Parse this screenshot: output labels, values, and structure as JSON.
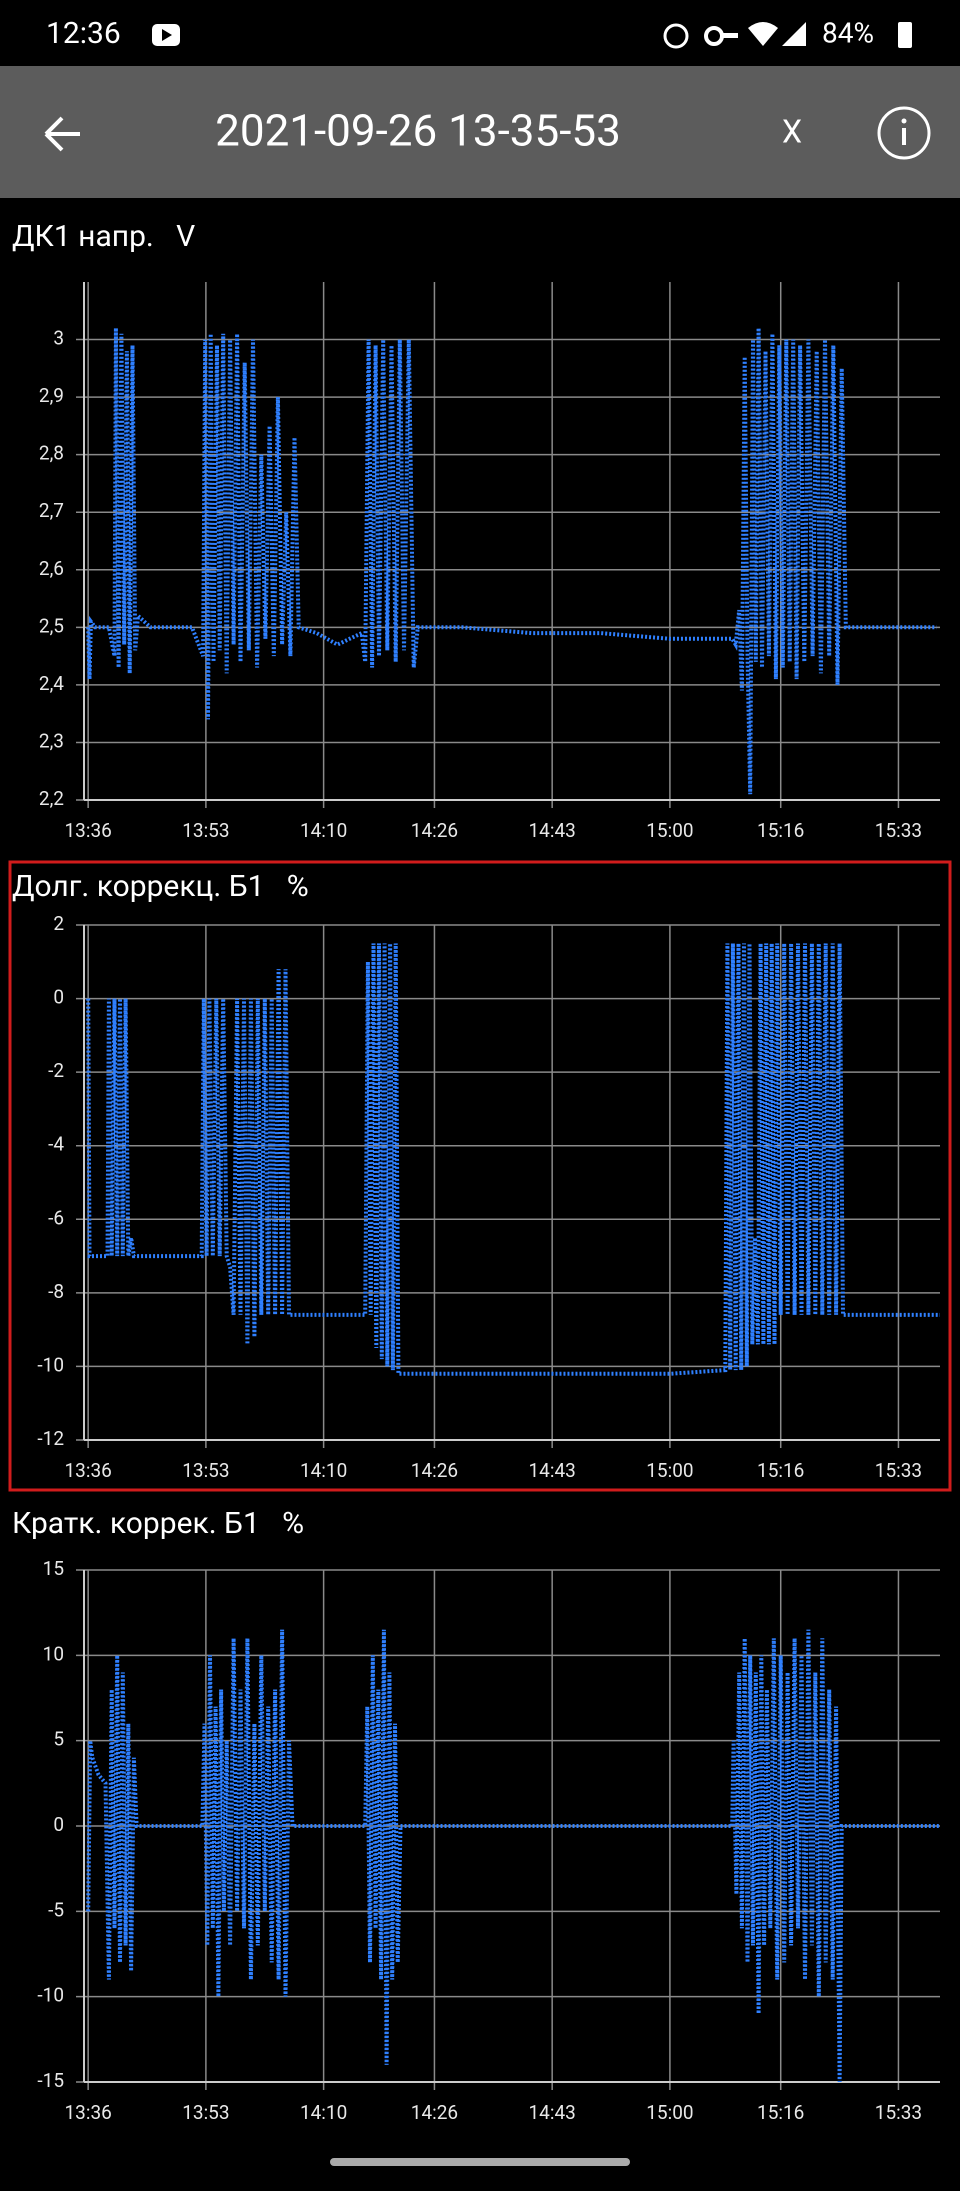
{
  "status_bar": {
    "time": "12:36",
    "battery": "84%"
  },
  "toolbar": {
    "title": "2021-09-26 13-35-53",
    "close": "X"
  },
  "chart_data": [
    {
      "type": "line",
      "title": "ДК1 напр.   V",
      "color": "#2f80ff",
      "grid": true,
      "xlim": [
        815.4,
        939
      ],
      "ylim": [
        2.2,
        3.1
      ],
      "xticks": [
        {
          "value": 816,
          "label": "13:36"
        },
        {
          "value": 833,
          "label": "13:53"
        },
        {
          "value": 850,
          "label": "14:10"
        },
        {
          "value": 866,
          "label": "14:26"
        },
        {
          "value": 883,
          "label": "14:43"
        },
        {
          "value": 900,
          "label": "15:00"
        },
        {
          "value": 916,
          "label": "15:16"
        },
        {
          "value": 933,
          "label": "15:33"
        }
      ],
      "yticks": [
        {
          "value": 2.2,
          "label": "2,2"
        },
        {
          "value": 2.3,
          "label": "2,3"
        },
        {
          "value": 2.4,
          "label": "2,4"
        },
        {
          "value": 2.5,
          "label": "2,5"
        },
        {
          "value": 2.6,
          "label": "2,6"
        },
        {
          "value": 2.7,
          "label": "2,7"
        },
        {
          "value": 2.8,
          "label": "2,8"
        },
        {
          "value": 2.9,
          "label": "2,9"
        },
        3
      ],
      "x": [
        816.0,
        816.2,
        816.4,
        817,
        819,
        819.8,
        820.0,
        820.4,
        820.8,
        821.2,
        821.6,
        822.0,
        822.4,
        822.8,
        823.2,
        825,
        828,
        831,
        832.6,
        832.9,
        833.3,
        833.7,
        834.1,
        834.6,
        835.0,
        835.5,
        836,
        836.5,
        837,
        837.5,
        838,
        838.6,
        839.2,
        839.8,
        840.4,
        841,
        841.6,
        842.2,
        842.8,
        843.4,
        844,
        844.6,
        845.2,
        845.8,
        846.4,
        849,
        852,
        855.5,
        856.0,
        856.5,
        857.0,
        857.5,
        858.0,
        858.6,
        859.2,
        859.8,
        860.4,
        861,
        861.6,
        862.3,
        863,
        863.6,
        870,
        880,
        890,
        900,
        905,
        909,
        909.5,
        910,
        910.4,
        910.8,
        911.2,
        911.6,
        912,
        912.4,
        912.8,
        913.3,
        913.8,
        914.3,
        914.8,
        915.3,
        915.8,
        916.3,
        916.8,
        917.3,
        917.8,
        918.3,
        918.8,
        919.4,
        920,
        920.6,
        921.2,
        921.8,
        922.4,
        923,
        923.6,
        924.2,
        924.8,
        925.4,
        926,
        932,
        938.5
      ],
      "values": [
        2.5,
        2.41,
        2.51,
        2.5,
        2.5,
        2.45,
        3.02,
        2.43,
        3.01,
        2.47,
        2.98,
        2.42,
        2.99,
        2.46,
        2.52,
        2.5,
        2.5,
        2.5,
        2.45,
        3.0,
        2.34,
        3.01,
        2.44,
        2.99,
        2.46,
        3.01,
        2.42,
        3.0,
        2.47,
        3.01,
        2.44,
        2.96,
        2.46,
        3.0,
        2.43,
        2.8,
        2.48,
        2.85,
        2.45,
        2.9,
        2.47,
        2.7,
        2.45,
        2.83,
        2.5,
        2.49,
        2.47,
        2.49,
        2.44,
        3.0,
        2.43,
        2.99,
        2.45,
        3.0,
        2.46,
        2.99,
        2.44,
        3.0,
        2.46,
        3.0,
        2.43,
        2.5,
        2.5,
        2.49,
        2.49,
        2.48,
        2.48,
        2.48,
        2.47,
        2.53,
        2.39,
        2.97,
        2.45,
        2.21,
        3.0,
        2.44,
        3.02,
        2.43,
        2.98,
        2.45,
        3.01,
        2.41,
        2.99,
        2.43,
        3.0,
        2.44,
        3.0,
        2.41,
        2.99,
        2.44,
        3.0,
        2.45,
        2.98,
        2.42,
        3.0,
        2.45,
        2.99,
        2.4,
        2.95,
        2.5,
        2.5,
        2.5,
        2.5
      ]
    },
    {
      "type": "line",
      "title": "Долг. коррекц. Б1   %",
      "color": "#2f80ff",
      "grid": true,
      "xlim": [
        815.4,
        939
      ],
      "ylim": [
        -12,
        2
      ],
      "xticks": [
        {
          "value": 816,
          "label": "13:36"
        },
        {
          "value": 833,
          "label": "13:53"
        },
        {
          "value": 850,
          "label": "14:10"
        },
        {
          "value": 866,
          "label": "14:26"
        },
        {
          "value": 883,
          "label": "14:43"
        },
        {
          "value": 900,
          "label": "15:00"
        },
        {
          "value": 916,
          "label": "15:16"
        },
        {
          "value": 933,
          "label": "15:33"
        }
      ],
      "yticks": [
        -12,
        -10,
        -8,
        -6,
        -4,
        -2,
        0,
        2
      ],
      "x": [
        816,
        816.2,
        818,
        818.8,
        819,
        819.4,
        819.8,
        820.2,
        820.6,
        821,
        821.4,
        821.8,
        822.2,
        822.6,
        823,
        826,
        830,
        832.4,
        832.7,
        833.1,
        833.5,
        834,
        834.5,
        835,
        835.5,
        836,
        836.5,
        837,
        837.5,
        838,
        838.5,
        839,
        839.5,
        840,
        840.5,
        841,
        841.5,
        842,
        842.5,
        843,
        843.5,
        844,
        844.5,
        845,
        850,
        855,
        856,
        856.4,
        856.8,
        857.2,
        857.6,
        858,
        858.4,
        858.8,
        859.2,
        859.6,
        860,
        860.4,
        860.8,
        861.5,
        870,
        880,
        890,
        900,
        908,
        908.3,
        908.7,
        909.1,
        909.5,
        909.9,
        910.3,
        910.7,
        911.1,
        911.5,
        911.9,
        912.3,
        912.7,
        913.1,
        913.5,
        913.9,
        914.3,
        914.7,
        915.1,
        915.5,
        916,
        916.5,
        917,
        917.5,
        918,
        918.5,
        919,
        919.5,
        920,
        920.5,
        921,
        921.5,
        922,
        922.5,
        923,
        923.5,
        924,
        924.5,
        925,
        930,
        939
      ],
      "values": [
        0,
        -7,
        -7,
        -7,
        0,
        -7,
        0,
        -7,
        0,
        -7,
        0,
        -7,
        -6.5,
        -7,
        -7,
        -7,
        -7,
        -7,
        0,
        -7,
        0,
        -7,
        0,
        -7,
        0,
        -7,
        -7.3,
        -8.6,
        0,
        -8.6,
        0,
        -9.4,
        0,
        -9.2,
        0,
        -8.6,
        0,
        -8.6,
        0,
        -8.6,
        0.8,
        -8.6,
        0.8,
        -8.6,
        -8.6,
        -8.6,
        -8.6,
        1.0,
        -8.6,
        1.5,
        -9.5,
        1.5,
        -9.8,
        1.5,
        -10,
        1.5,
        -10.1,
        1.5,
        -10.2,
        -10.2,
        -10.2,
        -10.2,
        -10.2,
        -10.2,
        -10.1,
        1.5,
        -10.1,
        1.5,
        -10.1,
        1.5,
        -10.1,
        1.5,
        -10.0,
        1.5,
        -9.4,
        -6.5,
        -9.4,
        1.5,
        -9.4,
        1.5,
        -9.4,
        1.5,
        -9.4,
        1.5,
        -8.6,
        1.5,
        -8.6,
        1.5,
        -8.6,
        1.5,
        -8.6,
        1.5,
        -8.6,
        1.5,
        -8.6,
        1.5,
        -8.6,
        1.5,
        -8.6,
        1.5,
        -8.6,
        1.5,
        -8.6,
        -8.6,
        -8.6
      ]
    },
    {
      "type": "line",
      "title": "Кратк. коррек. Б1   %",
      "color": "#2f80ff",
      "grid": true,
      "xlim": [
        815.4,
        939
      ],
      "ylim": [
        -15,
        15
      ],
      "xticks": [
        {
          "value": 816,
          "label": "13:36"
        },
        {
          "value": 833,
          "label": "13:53"
        },
        {
          "value": 850,
          "label": "14:10"
        },
        {
          "value": 866,
          "label": "14:26"
        },
        {
          "value": 883,
          "label": "14:43"
        },
        {
          "value": 900,
          "label": "15:00"
        },
        {
          "value": 916,
          "label": "15:16"
        },
        {
          "value": 933,
          "label": "15:33"
        }
      ],
      "yticks": [
        -15,
        -10,
        -5,
        0,
        5,
        10,
        15
      ],
      "x": [
        816,
        816.3,
        816.6,
        817.5,
        818.5,
        819,
        819.4,
        819.8,
        820.2,
        820.6,
        821,
        821.4,
        821.8,
        822.2,
        822.6,
        823,
        825,
        830,
        832.5,
        832.8,
        833.2,
        833.6,
        834,
        834.4,
        834.8,
        835.2,
        835.6,
        836,
        836.5,
        837,
        837.5,
        838,
        838.5,
        839,
        839.5,
        840,
        840.5,
        841,
        841.5,
        842,
        842.5,
        843,
        843.5,
        844,
        844.5,
        845,
        845.5,
        850,
        855,
        856,
        856.3,
        856.7,
        857.1,
        857.5,
        857.9,
        858.3,
        858.7,
        859.1,
        859.5,
        859.9,
        860.3,
        860.7,
        861.1,
        870,
        880,
        890,
        900,
        909,
        909.2,
        909.6,
        910,
        910.4,
        910.8,
        911.2,
        911.6,
        912,
        912.4,
        912.8,
        913.2,
        913.6,
        914,
        914.5,
        915,
        915.5,
        916,
        916.5,
        917,
        917.5,
        918,
        918.5,
        919,
        919.5,
        920,
        920.5,
        921,
        921.5,
        922,
        922.5,
        923,
        923.5,
        924,
        924.5,
        924.8,
        930,
        939
      ],
      "values": [
        -5,
        5,
        4,
        3,
        2.5,
        -9,
        8,
        -6,
        10,
        -8,
        9,
        -7,
        6,
        -8.5,
        4,
        0,
        0,
        0,
        0,
        6,
        -7,
        10,
        -6,
        7,
        -10,
        8,
        -5,
        5,
        -7,
        11,
        -5,
        8,
        -6,
        11,
        -9,
        6,
        -7,
        10,
        -5,
        7,
        -8,
        8,
        -9,
        11.5,
        -10,
        5,
        0,
        0,
        0,
        0,
        7,
        -8,
        10,
        -6,
        8,
        -9,
        11.5,
        -14,
        9,
        -9,
        6,
        -8,
        0,
        0,
        0,
        0,
        0,
        0,
        5,
        -4,
        9,
        -6,
        11,
        -8,
        10,
        -7,
        9,
        -11,
        10,
        -7,
        8,
        -6,
        11,
        -9,
        10,
        -8,
        9,
        -7,
        11,
        -6,
        10,
        -9,
        11.5,
        -7,
        9,
        -10,
        11,
        -8,
        8,
        -9,
        7,
        -15,
        0,
        0,
        0
      ]
    }
  ]
}
